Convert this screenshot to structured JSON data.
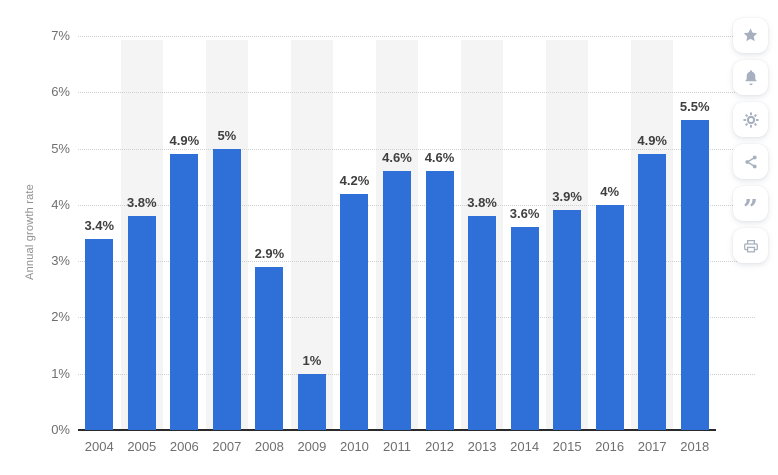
{
  "chart_data": {
    "type": "bar",
    "ylabel": "Annual growth rate",
    "categories": [
      "2004",
      "2005",
      "2006",
      "2007",
      "2008",
      "2009",
      "2010",
      "2011",
      "2012",
      "2013",
      "2014",
      "2015",
      "2016",
      "2017",
      "2018"
    ],
    "values": [
      3.4,
      3.8,
      4.9,
      5,
      2.9,
      1,
      4.2,
      4.6,
      4.6,
      3.8,
      3.6,
      3.9,
      4,
      4.9,
      5.5
    ],
    "value_labels": [
      "3.4%",
      "3.8%",
      "4.9%",
      "5%",
      "2.9%",
      "1%",
      "4.2%",
      "4.6%",
      "4.6%",
      "3.8%",
      "3.6%",
      "3.9%",
      "4%",
      "4.9%",
      "5.5%"
    ],
    "ylim": [
      0,
      7
    ],
    "ytick_labels": [
      "0%",
      "1%",
      "2%",
      "3%",
      "4%",
      "5%",
      "6%",
      "7%"
    ],
    "grid": "horizontal-dotted",
    "legend": "none",
    "colors": {
      "bar": "#2e6fd8",
      "stripe": "#f4f4f5",
      "grid_line": "#cfcfcf",
      "axis_line": "#2a2a2a",
      "tick_text": "#6f6f6f",
      "value_text": "#3f3f3f",
      "axis_title_text": "#8e8e8e"
    }
  },
  "toolbar": {
    "buttons": [
      {
        "name": "favorite-button",
        "icon": "star-icon"
      },
      {
        "name": "notification-button",
        "icon": "bell-icon"
      },
      {
        "name": "settings-button",
        "icon": "gear-icon"
      },
      {
        "name": "share-button",
        "icon": "share-icon"
      },
      {
        "name": "citation-button",
        "icon": "quote-icon"
      },
      {
        "name": "print-button",
        "icon": "print-icon"
      }
    ],
    "icon_color": "#a7b0bf"
  }
}
